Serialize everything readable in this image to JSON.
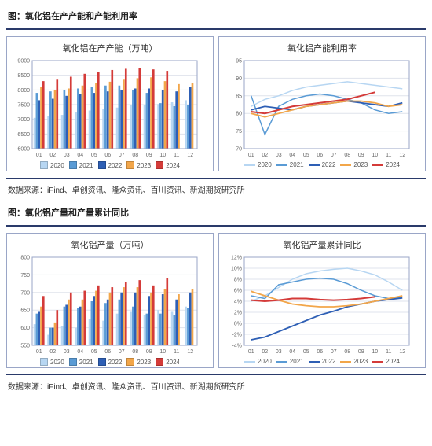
{
  "section1": {
    "title": "图：氧化铝在产产能和产能利用率",
    "source": "数据来源：iFind、卓创资讯、隆众资讯、百川资讯、新湖期货研究所",
    "chart_left": {
      "type": "bar",
      "title": "氧化铝在产产能（万吨）",
      "categories": [
        "01",
        "02",
        "03",
        "04",
        "05",
        "06",
        "07",
        "08",
        "09",
        "10",
        "11",
        "12"
      ],
      "series": [
        {
          "name": "2020",
          "color": "#b7d6f2",
          "values": [
            7050,
            7100,
            7150,
            7250,
            7300,
            7350,
            7400,
            7480,
            7500,
            7520,
            7580,
            7650
          ]
        },
        {
          "name": "2021",
          "color": "#5a9bd5",
          "values": [
            7900,
            7950,
            8000,
            8050,
            8100,
            8150,
            8150,
            8000,
            7900,
            7550,
            7450,
            7500
          ]
        },
        {
          "name": "2022",
          "color": "#2e5fb5",
          "values": [
            7650,
            7700,
            7800,
            7850,
            7900,
            7950,
            8000,
            8050,
            8050,
            8000,
            7950,
            8100
          ]
        },
        {
          "name": "2023",
          "color": "#f2a64a",
          "values": [
            8100,
            8000,
            8050,
            8150,
            8230,
            8280,
            8350,
            8400,
            8430,
            8300,
            8200,
            8250
          ]
        },
        {
          "name": "2024",
          "color": "#d43b39",
          "values": [
            8300,
            8350,
            8450,
            8550,
            8600,
            8680,
            8720,
            8750,
            8700,
            8650,
            null,
            null
          ]
        }
      ],
      "ylim": [
        6000,
        9000
      ],
      "ytick_step": 500,
      "background_color": "#ffffff",
      "grid_color": "#dfe3ec",
      "bar_group_width": 0.8,
      "label_fontsize": 7
    },
    "chart_right": {
      "type": "line",
      "title": "氧化铝产能利用率",
      "categories": [
        "01",
        "02",
        "03",
        "04",
        "05",
        "06",
        "07",
        "08",
        "09",
        "10",
        "11",
        "12"
      ],
      "series": [
        {
          "name": "2020",
          "color": "#b7d6f2",
          "width": 1.5,
          "values": [
            82,
            84,
            85,
            86.5,
            87.5,
            88,
            88.5,
            89,
            88.5,
            88,
            87.5,
            87
          ]
        },
        {
          "name": "2021",
          "color": "#5a9bd5",
          "width": 1.5,
          "values": [
            85,
            74,
            82,
            84,
            85,
            85.5,
            85,
            84,
            83,
            81,
            80,
            80.5
          ]
        },
        {
          "name": "2022",
          "color": "#2e5fb5",
          "width": 1.8,
          "values": [
            81,
            82,
            81.5,
            81,
            82,
            82.5,
            83,
            83.5,
            83,
            82.5,
            82,
            83
          ]
        },
        {
          "name": "2023",
          "color": "#f2a64a",
          "width": 1.8,
          "values": [
            80,
            79,
            80,
            81,
            82,
            82.5,
            83,
            83.5,
            83.5,
            83,
            82,
            82.5
          ]
        },
        {
          "name": "2024",
          "color": "#d43b39",
          "width": 2,
          "values": [
            80.5,
            80,
            81,
            82,
            82.5,
            83,
            83.5,
            84,
            85,
            86,
            null,
            null
          ]
        }
      ],
      "ylim": [
        70,
        95
      ],
      "ytick_step": 5,
      "background_color": "#ffffff",
      "grid_color": "#dfe3ec",
      "label_fontsize": 7
    }
  },
  "section2": {
    "title": "图：氧化铝产量和产量累计同比",
    "source": "数据来源：iFind、卓创资讯、隆众资讯、百川资讯、新湖期货研究所",
    "chart_left": {
      "type": "bar",
      "title": "氧化铝产量（万吨）",
      "categories": [
        "01",
        "02",
        "03",
        "04",
        "05",
        "06",
        "07",
        "08",
        "09",
        "10",
        "11",
        "12"
      ],
      "series": [
        {
          "name": "2020",
          "color": "#b7d6f2",
          "values": [
            610,
            580,
            605,
            600,
            625,
            620,
            640,
            645,
            635,
            650,
            645,
            660
          ]
        },
        {
          "name": "2021",
          "color": "#5a9bd5",
          "values": [
            640,
            600,
            660,
            655,
            675,
            670,
            680,
            660,
            640,
            640,
            635,
            655
          ]
        },
        {
          "name": "2022",
          "color": "#2e5fb5",
          "values": [
            645,
            600,
            665,
            660,
            690,
            680,
            700,
            700,
            690,
            695,
            680,
            700
          ]
        },
        {
          "name": "2023",
          "color": "#f2a64a",
          "values": [
            660,
            615,
            680,
            680,
            705,
            700,
            715,
            715,
            700,
            710,
            695,
            710
          ]
        },
        {
          "name": "2024",
          "color": "#d43b39",
          "values": [
            690,
            650,
            700,
            705,
            720,
            715,
            730,
            735,
            720,
            740,
            null,
            null
          ]
        }
      ],
      "ylim": [
        550,
        800
      ],
      "ytick_step": 50,
      "background_color": "#ffffff",
      "grid_color": "#dfe3ec",
      "bar_group_width": 0.8,
      "label_fontsize": 7
    },
    "chart_right": {
      "type": "line",
      "title": "氧化铝产量累计同比",
      "categories": [
        "01",
        "02",
        "03",
        "04",
        "05",
        "06",
        "07",
        "08",
        "09",
        "10",
        "11",
        "12"
      ],
      "series": [
        {
          "name": "2020",
          "color": "#b7d6f2",
          "width": 1.5,
          "values": [
            4,
            5,
            6.5,
            8,
            9,
            9.5,
            9.8,
            10,
            9.5,
            8.8,
            7.5,
            6
          ]
        },
        {
          "name": "2021",
          "color": "#5a9bd5",
          "width": 1.5,
          "values": [
            5,
            4.5,
            7,
            7.5,
            8,
            8.2,
            8,
            7.2,
            6,
            5,
            4.5,
            4.8
          ]
        },
        {
          "name": "2022",
          "color": "#2e5fb5",
          "width": 1.8,
          "values": [
            -3,
            -2.5,
            -1.5,
            -0.5,
            0.5,
            1.5,
            2.2,
            3,
            3.5,
            4,
            4.3,
            4.6
          ]
        },
        {
          "name": "2023",
          "color": "#f2a64a",
          "width": 1.8,
          "values": [
            5.8,
            5,
            4.2,
            3.5,
            3.2,
            3,
            3,
            3.2,
            3.5,
            4,
            4.5,
            5
          ]
        },
        {
          "name": "2024",
          "color": "#d43b39",
          "width": 2,
          "values": [
            4.2,
            4,
            4.2,
            4.5,
            4.5,
            4.3,
            4.2,
            4.3,
            4.5,
            4.8,
            null,
            null
          ]
        }
      ],
      "ylim": [
        -4,
        12
      ],
      "ytick_step": 2,
      "y_suffix": "%",
      "background_color": "#ffffff",
      "grid_color": "#dfe3ec",
      "label_fontsize": 7
    }
  }
}
